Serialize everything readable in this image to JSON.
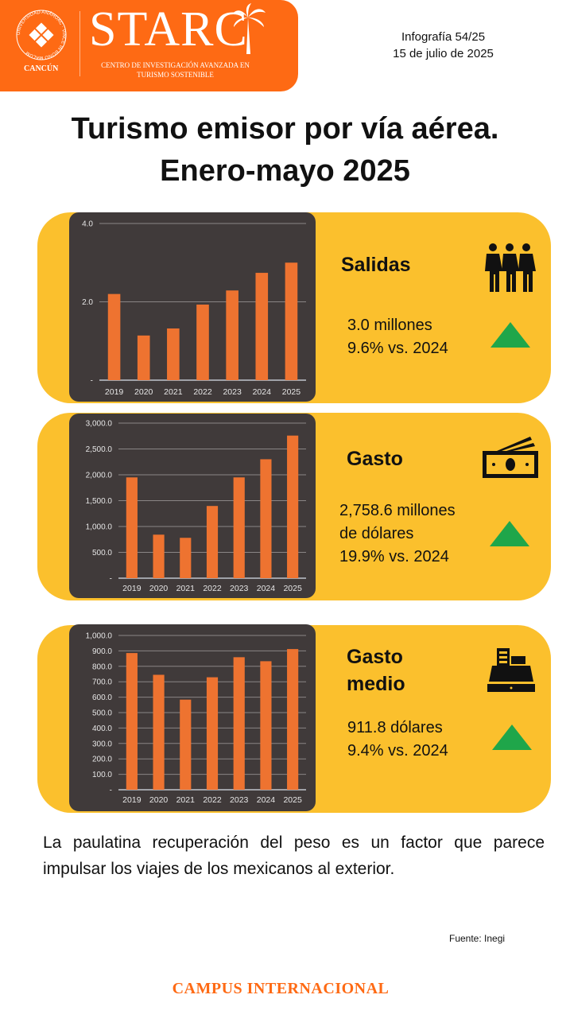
{
  "header": {
    "org_seal_text": "UNIVERSIDAD ANÁHUAC · VINCE IN BONO MALUM",
    "campus_logo": "CANCÚN",
    "logo": "STARC",
    "logo_subtitle": "CENTRO DE INVESTIGACIÓN AVANZADA EN TURISMO SOSTENIBLE",
    "infographic_number": "Infografía 54/25",
    "date": "15 de julio de 2025"
  },
  "title": {
    "line1": "Turismo emisor por vía aérea.",
    "line2": "Enero-mayo 2025"
  },
  "colors": {
    "brand": "#fe6a14",
    "card": "#fbc02d",
    "panel": "#403a3a",
    "bar": "#ee7330",
    "up": "#1fa64a"
  },
  "cards": [
    {
      "label": "Salidas",
      "icon": "people-icon",
      "lines": [
        "3.0 millones",
        "9.6% vs. 2024"
      ],
      "trend": "up"
    },
    {
      "label": "Gasto",
      "icon": "money-icon",
      "lines": [
        "2,758.6 millones",
        "de dólares",
        "19.9% vs. 2024"
      ],
      "trend": "up"
    },
    {
      "label": "Gasto medio",
      "label_lines": [
        "Gasto",
        "medio"
      ],
      "icon": "cash-register-icon",
      "lines": [
        "911.8 dólares",
        "9.4% vs. 2024"
      ],
      "trend": "up"
    }
  ],
  "chart_data": [
    {
      "type": "bar",
      "categories": [
        "2019",
        "2020",
        "2021",
        "2022",
        "2023",
        "2024",
        "2025"
      ],
      "values": [
        2.2,
        1.14,
        1.32,
        1.93,
        2.29,
        2.74,
        3.0
      ],
      "ylim": [
        0,
        4
      ],
      "yticks": [
        0,
        2,
        4
      ],
      "ytick_labels": [
        "-",
        "2.0",
        "4.0"
      ],
      "title": "",
      "xlabel": "",
      "ylabel": "",
      "grid": true
    },
    {
      "type": "bar",
      "categories": [
        "2019",
        "2020",
        "2021",
        "2022",
        "2023",
        "2024",
        "2025"
      ],
      "values": [
        1950,
        842,
        781,
        1397,
        1950,
        2301,
        2758.6
      ],
      "ylim": [
        0,
        3000
      ],
      "yticks": [
        0,
        500,
        1000,
        1500,
        2000,
        2500,
        3000
      ],
      "ytick_labels": [
        "-",
        "500.0",
        "1,000.0",
        "1,500.0",
        "2,000.0",
        "2,500.0",
        "3,000.0"
      ],
      "title": "",
      "xlabel": "",
      "ylabel": "",
      "grid": true
    },
    {
      "type": "bar",
      "categories": [
        "2019",
        "2020",
        "2021",
        "2022",
        "2023",
        "2024",
        "2025"
      ],
      "values": [
        886,
        745,
        584,
        729,
        859,
        833,
        911.8
      ],
      "ylim": [
        0,
        1000
      ],
      "yticks": [
        0,
        100,
        200,
        300,
        400,
        500,
        600,
        700,
        800,
        900,
        1000
      ],
      "ytick_labels": [
        "-",
        "100.0",
        "200.0",
        "300.0",
        "400.0",
        "500.0",
        "600.0",
        "700.0",
        "800.0",
        "900.0",
        "1,000.0"
      ],
      "title": "",
      "xlabel": "",
      "ylabel": "",
      "grid": true
    }
  ],
  "footer": {
    "paragraph": "La paulatina recuperación del peso es un factor que parece impulsar los viajes de los mexicanos al exterior.",
    "source": "Fuente: Inegi",
    "campus": "CAMPUS INTERNACIONAL"
  }
}
